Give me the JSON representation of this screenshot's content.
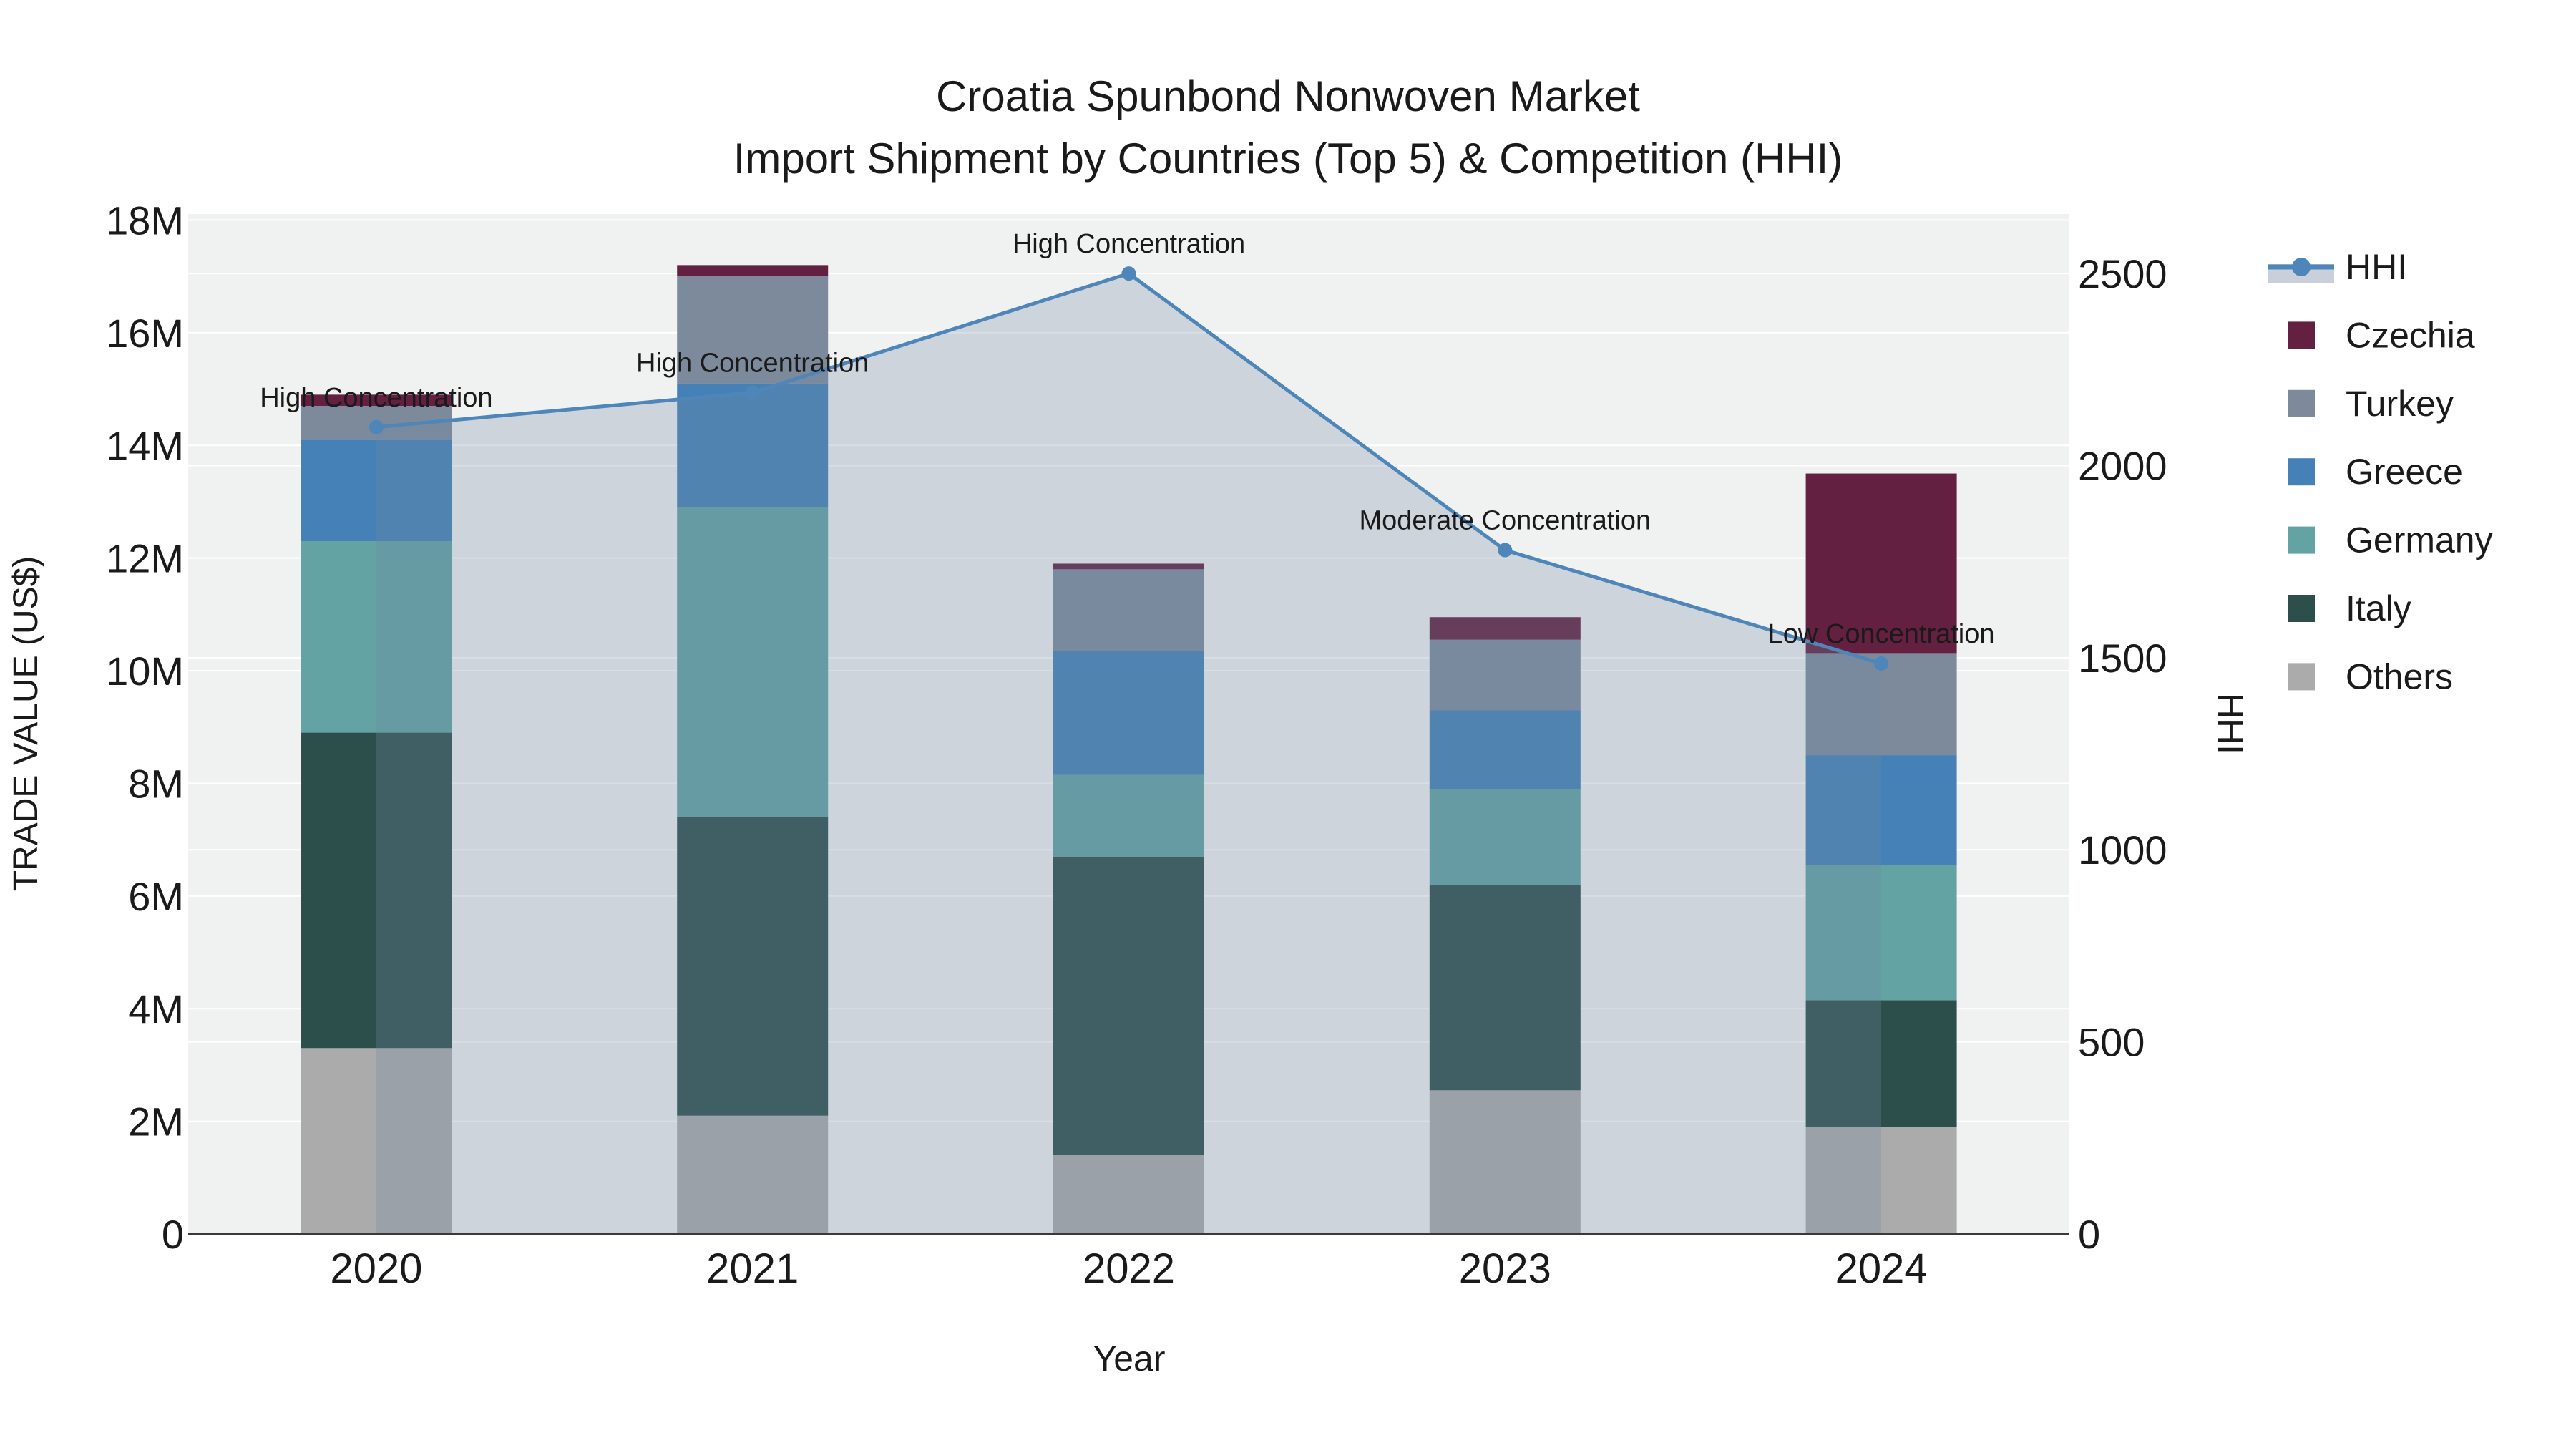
{
  "title": {
    "line1": "Croatia Spunbond Nonwoven Market",
    "line2": "Import Shipment by Countries (Top 5) & Competition (HHI)"
  },
  "axes": {
    "x": {
      "label": "Year",
      "ticks": [
        "2020",
        "2021",
        "2022",
        "2023",
        "2024"
      ]
    },
    "y_left": {
      "label": "TRADE VALUE (US$)",
      "ticks": [
        "0",
        "2M",
        "4M",
        "6M",
        "8M",
        "10M",
        "12M",
        "14M",
        "16M",
        "18M"
      ],
      "max_millions": 18
    },
    "y_right": {
      "label": "HHI",
      "ticks": [
        "0",
        "500",
        "1000",
        "1500",
        "2000",
        "2500"
      ],
      "max": 2500
    }
  },
  "legend": {
    "items": [
      {
        "label": "HHI",
        "type": "line"
      },
      {
        "label": "Czechia",
        "type": "swatch",
        "color": "#632040"
      },
      {
        "label": "Turkey",
        "type": "swatch",
        "color": "#7c8a9b"
      },
      {
        "label": "Greece",
        "type": "swatch",
        "color": "#4581b6"
      },
      {
        "label": "Germany",
        "type": "swatch",
        "color": "#63a3a3"
      },
      {
        "label": "Italy",
        "type": "swatch",
        "color": "#2d4f4b"
      },
      {
        "label": "Others",
        "type": "swatch",
        "color": "#ababab"
      }
    ]
  },
  "annotations": [
    {
      "year": "2020",
      "text": "High Concentration"
    },
    {
      "year": "2021",
      "text": "High Concentration"
    },
    {
      "year": "2022",
      "text": "High Concentration"
    },
    {
      "year": "2023",
      "text": "Moderate Concentration"
    },
    {
      "year": "2024",
      "text": "Low Concentration"
    }
  ],
  "chart_data": {
    "type": "bar",
    "subtype": "stacked-bar-with-line",
    "categories": [
      "2020",
      "2021",
      "2022",
      "2023",
      "2024"
    ],
    "bar_unit": "million US$",
    "bar_stack_order_bottom_to_top": [
      "Others",
      "Italy",
      "Germany",
      "Greece",
      "Turkey",
      "Czechia"
    ],
    "series": [
      {
        "name": "Others",
        "color": "#ababab",
        "values": [
          3.3,
          2.1,
          1.4,
          2.55,
          1.9
        ]
      },
      {
        "name": "Italy",
        "color": "#2d4f4b",
        "values": [
          5.6,
          5.3,
          5.3,
          3.65,
          2.25
        ]
      },
      {
        "name": "Germany",
        "color": "#63a3a3",
        "values": [
          3.4,
          5.5,
          1.45,
          1.7,
          2.4
        ]
      },
      {
        "name": "Greece",
        "color": "#4581b6",
        "values": [
          1.8,
          2.2,
          2.2,
          1.4,
          1.95
        ]
      },
      {
        "name": "Turkey",
        "color": "#7c8a9b",
        "values": [
          0.6,
          1.9,
          1.45,
          1.25,
          1.8
        ]
      },
      {
        "name": "Czechia",
        "color": "#632040",
        "values": [
          0.2,
          0.2,
          0.1,
          0.4,
          3.2
        ]
      }
    ],
    "bar_totals": [
      14.9,
      17.2,
      11.9,
      10.95,
      13.5
    ],
    "line_series": {
      "name": "HHI",
      "color": "#4e86ba",
      "area_color": "rgba(115,136,167,0.28)",
      "values": [
        2100,
        2190,
        2500,
        1780,
        1485
      ]
    },
    "xlabel": "Year",
    "ylabel_left": "TRADE VALUE (US$)",
    "ylabel_right": "HHI",
    "ylim_left_millions": [
      0,
      18
    ],
    "ylim_right": [
      0,
      2500
    ],
    "grid": true,
    "legend_position": "right"
  },
  "colors": {
    "plot_background": "#f0f1f1",
    "paper_background": "#ffffff",
    "gridline": "#ffffff",
    "axis_line": "#3a3a3a",
    "text": "#1a1a1a"
  }
}
